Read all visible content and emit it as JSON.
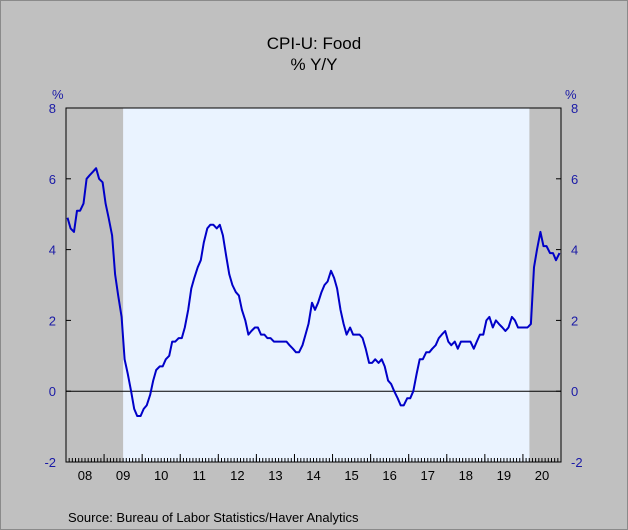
{
  "chart_data": {
    "type": "line",
    "title": "CPI-U: Food",
    "subtitle": "% Y/Y",
    "y_unit_left": "%",
    "y_unit_right": "%",
    "ylim": [
      -2,
      8
    ],
    "yticks": [
      -2,
      0,
      2,
      4,
      6,
      8
    ],
    "ytick_labels": [
      "-2",
      "0",
      "2",
      "4",
      "6",
      "8"
    ],
    "xlim": [
      2008.0,
      2021.0
    ],
    "x_labels": [
      "08",
      "09",
      "10",
      "11",
      "12",
      "13",
      "14",
      "15",
      "16",
      "17",
      "18",
      "19",
      "20"
    ],
    "recessions": [
      [
        2008.0,
        2009.5
      ],
      [
        2020.17,
        2021.0
      ]
    ],
    "grid": false,
    "zero_line": true,
    "line_color": "#0000c8",
    "plot_background": "#eaf3ff",
    "recession_color": "#c0c0c0",
    "source": "Source:  Bureau of Labor Statistics/Haver Analytics",
    "series": [
      {
        "x": [
          2008.04,
          2008.12,
          2008.21,
          2008.29,
          2008.37,
          2008.46,
          2008.54,
          2008.62,
          2008.71,
          2008.79,
          2008.87,
          2008.96,
          2009.04,
          2009.12,
          2009.21,
          2009.29,
          2009.37,
          2009.46,
          2009.54,
          2009.62,
          2009.71,
          2009.79,
          2009.87,
          2009.96,
          2010.04,
          2010.12,
          2010.21,
          2010.29,
          2010.37,
          2010.46,
          2010.54,
          2010.62,
          2010.71,
          2010.79,
          2010.87,
          2010.96,
          2011.04,
          2011.12,
          2011.21,
          2011.29,
          2011.37,
          2011.46,
          2011.54,
          2011.62,
          2011.71,
          2011.79,
          2011.87,
          2011.96,
          2012.04,
          2012.12,
          2012.21,
          2012.29,
          2012.37,
          2012.46,
          2012.54,
          2012.62,
          2012.71,
          2012.79,
          2012.87,
          2012.96,
          2013.04,
          2013.12,
          2013.21,
          2013.29,
          2013.37,
          2013.46,
          2013.54,
          2013.62,
          2013.71,
          2013.79,
          2013.87,
          2013.96,
          2014.04,
          2014.12,
          2014.21,
          2014.29,
          2014.37,
          2014.46,
          2014.54,
          2014.62,
          2014.71,
          2014.79,
          2014.87,
          2014.96,
          2015.04,
          2015.12,
          2015.21,
          2015.29,
          2015.37,
          2015.46,
          2015.54,
          2015.62,
          2015.71,
          2015.79,
          2015.87,
          2015.96,
          2016.04,
          2016.12,
          2016.21,
          2016.29,
          2016.37,
          2016.46,
          2016.54,
          2016.62,
          2016.71,
          2016.79,
          2016.87,
          2016.96,
          2017.04,
          2017.12,
          2017.21,
          2017.29,
          2017.37,
          2017.46,
          2017.54,
          2017.62,
          2017.71,
          2017.79,
          2017.87,
          2017.96,
          2018.04,
          2018.12,
          2018.21,
          2018.29,
          2018.37,
          2018.46,
          2018.54,
          2018.62,
          2018.71,
          2018.79,
          2018.87,
          2018.96,
          2019.04,
          2019.12,
          2019.21,
          2019.29,
          2019.37,
          2019.46,
          2019.54,
          2019.62,
          2019.71,
          2019.79,
          2019.87,
          2019.96,
          2020.04,
          2020.12,
          2020.21,
          2020.29,
          2020.37,
          2020.46,
          2020.54,
          2020.62,
          2020.71,
          2020.79,
          2020.87,
          2020.96
        ],
        "y": [
          4.9,
          4.6,
          4.5,
          5.1,
          5.1,
          5.3,
          6.0,
          6.1,
          6.2,
          6.3,
          6.0,
          5.9,
          5.3,
          4.9,
          4.4,
          3.3,
          2.7,
          2.1,
          0.9,
          0.5,
          0.0,
          -0.5,
          -0.7,
          -0.7,
          -0.5,
          -0.4,
          -0.1,
          0.3,
          0.6,
          0.7,
          0.7,
          0.9,
          1.0,
          1.4,
          1.4,
          1.5,
          1.5,
          1.8,
          2.3,
          2.9,
          3.2,
          3.5,
          3.7,
          4.2,
          4.6,
          4.7,
          4.7,
          4.6,
          4.7,
          4.4,
          3.8,
          3.3,
          3.0,
          2.8,
          2.7,
          2.3,
          2.0,
          1.6,
          1.7,
          1.8,
          1.8,
          1.6,
          1.6,
          1.5,
          1.5,
          1.4,
          1.4,
          1.4,
          1.4,
          1.4,
          1.3,
          1.2,
          1.1,
          1.1,
          1.3,
          1.6,
          1.9,
          2.5,
          2.3,
          2.5,
          2.8,
          3.0,
          3.1,
          3.4,
          3.2,
          2.9,
          2.3,
          1.9,
          1.6,
          1.8,
          1.6,
          1.6,
          1.6,
          1.5,
          1.2,
          0.8,
          0.8,
          0.9,
          0.8,
          0.9,
          0.7,
          0.3,
          0.2,
          0.0,
          -0.2,
          -0.4,
          -0.4,
          -0.2,
          -0.2,
          0.0,
          0.5,
          0.9,
          0.9,
          1.1,
          1.1,
          1.2,
          1.3,
          1.5,
          1.6,
          1.7,
          1.4,
          1.3,
          1.4,
          1.2,
          1.4,
          1.4,
          1.4,
          1.4,
          1.2,
          1.4,
          1.6,
          1.6,
          2.0,
          2.1,
          1.8,
          2.0,
          1.9,
          1.8,
          1.7,
          1.8,
          2.1,
          2.0,
          1.8,
          1.8,
          1.8,
          1.8,
          1.9,
          3.5,
          4.0,
          4.5,
          4.1,
          4.1,
          3.9,
          3.9,
          3.7,
          3.9
        ]
      }
    ]
  }
}
